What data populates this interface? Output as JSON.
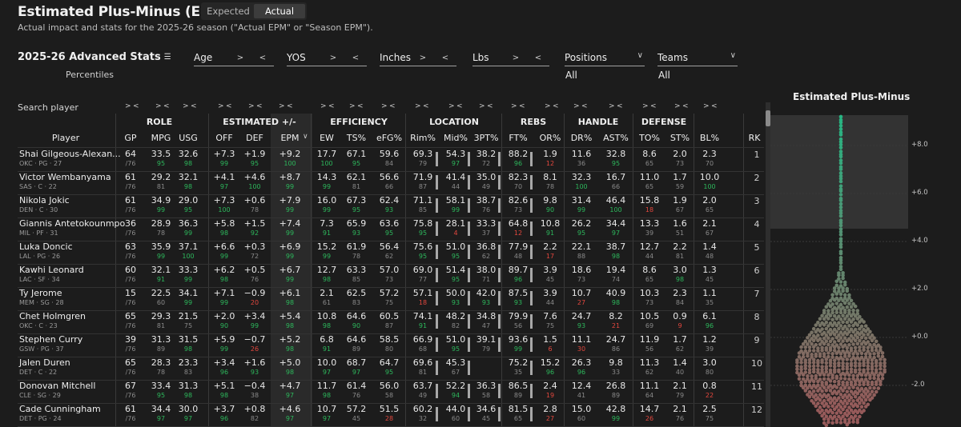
{
  "header": {
    "title": "Estimated Plus-Minus (EPM)",
    "toggle": [
      "Expected",
      "Actual"
    ],
    "toggle_active": "Actual",
    "subtitle": "Actual impact and stats for the 2025-26 season (\"Actual EPM\" or \"Season EPM\")."
  },
  "panel": {
    "title": "2025-26 Advanced Stats",
    "percentiles_label": "Percentiles",
    "search_placeholder": "Search player"
  },
  "filters": [
    {
      "label": "Age",
      "gt": ">",
      "lt": "<"
    },
    {
      "label": "YOS",
      "gt": ">",
      "lt": "<"
    },
    {
      "label": "Inches",
      "gt": ">",
      "lt": "<"
    },
    {
      "label": "Lbs",
      "gt": ">",
      "lt": "<"
    }
  ],
  "dropdowns": [
    {
      "label": "Positions",
      "value": "All"
    },
    {
      "label": "Teams",
      "value": "All"
    }
  ],
  "groups": [
    "ROLE",
    "ESTIMATED +/-",
    "EFFICIENCY",
    "LOCATION",
    "REBS",
    "HANDLE",
    "DEFENSE"
  ],
  "columns": [
    "Player",
    "GP",
    "MPG",
    "USG",
    "OFF",
    "DEF",
    "EPM",
    "EW",
    "TS%",
    "eFG%",
    "Rim%",
    "Mid%",
    "3PT%",
    "FT%",
    "OR%",
    "DR%",
    "AST%",
    "TO%",
    "ST%",
    "BL%",
    "RK"
  ],
  "sort_indicator": "∨",
  "rows": [
    {
      "name": "Shai Gilgeous-Alexan...",
      "meta": "OKC · PG · 27",
      "gp": "64",
      "gpp": "/76",
      "vals": [
        "33.5",
        "32.6",
        "+7.3",
        "+1.9",
        "+9.2",
        "17.7",
        "67.1",
        "59.6",
        "69.3",
        "54.3",
        "38.2",
        "88.2",
        "1.9",
        "11.6",
        "32.8",
        "8.6",
        "2.0",
        "2.3"
      ],
      "pcts": [
        "95",
        "98",
        "99",
        "95",
        "100",
        "100",
        "95",
        "84",
        "79",
        "97",
        "72",
        "96",
        "12",
        "36",
        "95",
        "65",
        "73",
        "70"
      ],
      "rk": "1"
    },
    {
      "name": "Victor Wembanyama",
      "meta": "SAS · C · 22",
      "gp": "61",
      "gpp": "/76",
      "vals": [
        "29.2",
        "32.1",
        "+4.1",
        "+4.6",
        "+8.7",
        "14.3",
        "62.1",
        "56.6",
        "71.9",
        "41.4",
        "35.0",
        "82.3",
        "8.1",
        "32.3",
        "16.7",
        "11.0",
        "1.7",
        "10.0"
      ],
      "pcts": [
        "81",
        "98",
        "97",
        "100",
        "99",
        "99",
        "81",
        "66",
        "87",
        "44",
        "49",
        "70",
        "78",
        "100",
        "66",
        "65",
        "59",
        "100"
      ],
      "rk": "2"
    },
    {
      "name": "Nikola Jokic",
      "meta": "DEN · C · 30",
      "gp": "61",
      "gpp": "/76",
      "vals": [
        "34.9",
        "29.0",
        "+7.3",
        "+0.6",
        "+7.9",
        "16.0",
        "67.3",
        "62.4",
        "71.1",
        "58.1",
        "38.7",
        "82.6",
        "9.8",
        "31.4",
        "46.4",
        "15.8",
        "1.9",
        "2.0"
      ],
      "pcts": [
        "99",
        "95",
        "100",
        "78",
        "99",
        "99",
        "95",
        "93",
        "85",
        "99",
        "76",
        "73",
        "90",
        "99",
        "100",
        "18",
        "67",
        "65"
      ],
      "rk": "3"
    },
    {
      "name": "Giannis Antetokounmpo",
      "meta": "MIL · PF · 31",
      "gp": "36",
      "gpp": "/76",
      "vals": [
        "28.9",
        "36.3",
        "+5.8",
        "+1.5",
        "+7.4",
        "7.3",
        "65.9",
        "63.6",
        "75.8",
        "28.1",
        "33.3",
        "64.8",
        "10.8",
        "26.2",
        "34.4",
        "13.3",
        "1.6",
        "2.1"
      ],
      "pcts": [
        "78",
        "99",
        "98",
        "92",
        "99",
        "91",
        "93",
        "95",
        "95",
        "4",
        "37",
        "12",
        "91",
        "95",
        "97",
        "39",
        "51",
        "67"
      ],
      "rk": "4"
    },
    {
      "name": "Luka Doncic",
      "meta": "LAL · PG · 26",
      "gp": "63",
      "gpp": "/76",
      "vals": [
        "35.9",
        "37.1",
        "+6.6",
        "+0.3",
        "+6.9",
        "15.2",
        "61.9",
        "56.4",
        "75.6",
        "51.0",
        "36.8",
        "77.9",
        "2.2",
        "22.1",
        "38.7",
        "12.7",
        "2.2",
        "1.4"
      ],
      "pcts": [
        "99",
        "100",
        "99",
        "72",
        "99",
        "99",
        "78",
        "62",
        "95",
        "95",
        "62",
        "48",
        "17",
        "88",
        "98",
        "44",
        "81",
        "48"
      ],
      "rk": "5"
    },
    {
      "name": "Kawhi Leonard",
      "meta": "LAC · SF · 34",
      "gp": "60",
      "gpp": "/76",
      "vals": [
        "32.1",
        "33.3",
        "+6.2",
        "+0.5",
        "+6.7",
        "12.7",
        "63.3",
        "57.0",
        "69.0",
        "51.4",
        "38.0",
        "89.7",
        "3.9",
        "18.6",
        "19.4",
        "8.6",
        "3.0",
        "1.3"
      ],
      "pcts": [
        "91",
        "99",
        "98",
        "76",
        "99",
        "98",
        "85",
        "73",
        "77",
        "95",
        "71",
        "96",
        "45",
        "73",
        "74",
        "65",
        "98",
        "45"
      ],
      "rk": "6"
    },
    {
      "name": "Ty Jerome",
      "meta": "MEM · SG · 28",
      "gp": "15",
      "gpp": "/76",
      "vals": [
        "22.5",
        "34.1",
        "+7.1",
        "−0.9",
        "+6.1",
        "2.1",
        "62.5",
        "57.2",
        "57.1",
        "50.0",
        "42.0",
        "87.5",
        "3.9",
        "10.7",
        "40.9",
        "10.3",
        "2.3",
        "1.1"
      ],
      "pcts": [
        "60",
        "99",
        "99",
        "20",
        "98",
        "61",
        "83",
        "75",
        "18",
        "93",
        "93",
        "93",
        "44",
        "27",
        "98",
        "73",
        "84",
        "35"
      ],
      "rk": "7"
    },
    {
      "name": "Chet Holmgren",
      "meta": "OKC · C · 23",
      "gp": "65",
      "gpp": "/76",
      "vals": [
        "29.3",
        "21.5",
        "+2.0",
        "+3.4",
        "+5.4",
        "10.8",
        "64.6",
        "60.5",
        "74.1",
        "48.2",
        "34.8",
        "79.9",
        "7.6",
        "24.7",
        "8.2",
        "10.5",
        "0.9",
        "6.1"
      ],
      "pcts": [
        "81",
        "75",
        "90",
        "99",
        "98",
        "98",
        "90",
        "87",
        "91",
        "82",
        "47",
        "56",
        "75",
        "93",
        "21",
        "69",
        "9",
        "96"
      ],
      "rk": "8"
    },
    {
      "name": "Stephen Curry",
      "meta": "GSW · PG · 37",
      "gp": "39",
      "gpp": "/76",
      "vals": [
        "31.3",
        "31.5",
        "+5.9",
        "−0.7",
        "+5.2",
        "6.8",
        "64.6",
        "58.5",
        "66.9",
        "51.0",
        "39.1",
        "93.6",
        "1.5",
        "11.1",
        "24.7",
        "11.9",
        "1.7",
        "1.2"
      ],
      "pcts": [
        "89",
        "98",
        "99",
        "26",
        "98",
        "91",
        "89",
        "80",
        "68",
        "95",
        "79",
        "99",
        "6",
        "30",
        "86",
        "56",
        "62",
        "39"
      ],
      "rk": "9"
    },
    {
      "name": "Jalen Duren",
      "meta": "DET · C · 22",
      "gp": "65",
      "gpp": "/76",
      "vals": [
        "28.3",
        "23.3",
        "+3.4",
        "+1.6",
        "+5.0",
        "10.0",
        "68.7",
        "64.7",
        "69.6",
        "45.3",
        "",
        "75.2",
        "15.2",
        "26.3",
        "9.8",
        "11.3",
        "1.4",
        "3.0"
      ],
      "pcts": [
        "78",
        "83",
        "96",
        "93",
        "98",
        "97",
        "97",
        "95",
        "81",
        "67",
        "",
        "35",
        "96",
        "96",
        "33",
        "62",
        "40",
        "80"
      ],
      "rk": "10"
    },
    {
      "name": "Donovan Mitchell",
      "meta": "CLE · SG · 29",
      "gp": "67",
      "gpp": "/76",
      "vals": [
        "33.4",
        "31.3",
        "+5.1",
        "−0.4",
        "+4.7",
        "11.7",
        "61.4",
        "56.0",
        "63.7",
        "52.2",
        "36.3",
        "86.5",
        "2.4",
        "12.4",
        "26.8",
        "11.1",
        "2.1",
        "0.8"
      ],
      "pcts": [
        "95",
        "98",
        "98",
        "38",
        "97",
        "98",
        "76",
        "58",
        "49",
        "94",
        "58",
        "89",
        "19",
        "41",
        "89",
        "64",
        "79",
        "22"
      ],
      "rk": "11"
    },
    {
      "name": "Cade Cunningham",
      "meta": "DET · PG · 24",
      "gp": "61",
      "gpp": "/76",
      "vals": [
        "34.4",
        "30.0",
        "+3.7",
        "+0.8",
        "+4.6",
        "10.7",
        "57.2",
        "51.5",
        "60.2",
        "44.0",
        "34.6",
        "81.5",
        "2.8",
        "15.0",
        "42.8",
        "14.7",
        "2.1",
        "2.5"
      ],
      "pcts": [
        "97",
        "97",
        "96",
        "82",
        "97",
        "97",
        "45",
        "28",
        "32",
        "60",
        "45",
        "65",
        "27",
        "60",
        "99",
        "26",
        "76",
        "75"
      ],
      "rk": "12"
    }
  ],
  "sidechart": {
    "title": "Estimated Plus-Minus",
    "ticks": [
      "+8.0",
      "+6.0",
      "+4.0",
      "+2.0",
      "+0.0",
      "-2.0"
    ]
  }
}
